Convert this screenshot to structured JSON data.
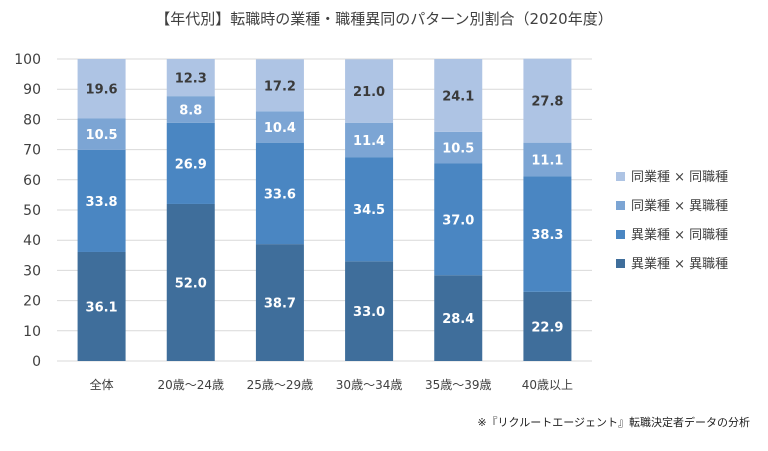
{
  "chart_data": {
    "type": "bar",
    "stacked": true,
    "title": "【年代別】転職時の業種・職種異同のパターン別割合（2020年度）",
    "footnote": "※『リクルートエージェント』転職決定者データの分析",
    "categories": [
      "全体",
      "20歳～24歳",
      "25歳～29歳",
      "30歳～34歳",
      "35歳～39歳",
      "40歳以上"
    ],
    "ylim": [
      0,
      100
    ],
    "yticks": [
      0,
      10,
      20,
      30,
      40,
      50,
      60,
      70,
      80,
      90,
      100
    ],
    "grid": true,
    "legend_position": "right",
    "series": [
      {
        "name": "異業種 × 異職種",
        "color": "#3f6e9b",
        "values": [
          36.1,
          52.0,
          38.7,
          33.0,
          28.4,
          22.9
        ],
        "labels": [
          "36.1",
          "52.0",
          "38.7",
          "33.0",
          "28.4",
          "22.9"
        ]
      },
      {
        "name": "異業種 × 同職種",
        "color": "#4a86c2",
        "values": [
          33.8,
          26.9,
          33.6,
          34.5,
          37.0,
          38.3
        ],
        "labels": [
          "33.8",
          "26.9",
          "33.6",
          "34.5",
          "37.0",
          "38.3"
        ]
      },
      {
        "name": "同業種 × 異職種",
        "color": "#7ca5d4",
        "values": [
          10.5,
          8.8,
          10.4,
          11.4,
          10.5,
          11.1
        ],
        "labels": [
          "10.5",
          "8.8",
          "10.4",
          "11.4",
          "10.5",
          "11.1"
        ]
      },
      {
        "name": "同業種 × 同職種",
        "color": "#aec4e4",
        "values": [
          19.6,
          12.3,
          17.2,
          21.0,
          24.1,
          27.8
        ],
        "labels": [
          "19.6",
          "12.3",
          "17.2",
          "21.0",
          "24.1",
          "27.8"
        ]
      }
    ],
    "legend_order": [
      "同業種 × 同職種",
      "同業種 × 異職種",
      "異業種 × 同職種",
      "異業種 × 異職種"
    ]
  }
}
